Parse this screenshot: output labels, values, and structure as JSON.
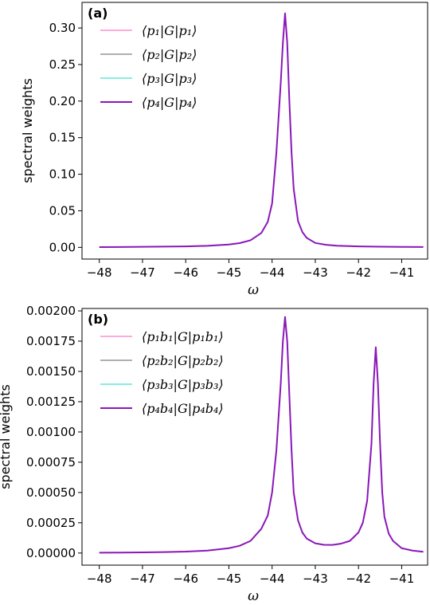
{
  "chart_data": [
    {
      "type": "line",
      "panel_tag": "(a)",
      "xlabel": "ω",
      "ylabel": "spectral weights",
      "xlim": [
        -48.4,
        -40.4
      ],
      "ylim": [
        -0.016,
        0.335
      ],
      "x_ticks": [
        -48,
        -47,
        -46,
        -45,
        -44,
        -43,
        -42,
        -41
      ],
      "x_tick_labels": [
        "−48",
        "−47",
        "−46",
        "−45",
        "−44",
        "−43",
        "−42",
        "−41"
      ],
      "y_ticks": [
        0.0,
        0.05,
        0.1,
        0.15,
        0.2,
        0.25,
        0.3
      ],
      "y_tick_labels": [
        "0.00",
        "0.05",
        "0.10",
        "0.15",
        "0.20",
        "0.25",
        "0.30"
      ],
      "legend_position": "top-left",
      "grid": false,
      "series": [
        {
          "name": "⟨p₁|G|p₁⟩",
          "color": "#ff77c6",
          "width": 1.2
        },
        {
          "name": "⟨p₂|G|p₂⟩",
          "color": "#7f7f7f",
          "width": 1.2
        },
        {
          "name": "⟨p₃|G|p₃⟩",
          "color": "#40e0d0",
          "width": 1.2
        },
        {
          "name": "⟨p₄|G|p₄⟩",
          "color": "#8a17b8",
          "width": 2.0
        }
      ],
      "curve": {
        "x": [
          -48.0,
          -47.5,
          -47.0,
          -46.5,
          -46.0,
          -45.5,
          -45.0,
          -44.75,
          -44.5,
          -44.25,
          -44.1,
          -44.0,
          -43.9,
          -43.8,
          -43.75,
          -43.7,
          -43.65,
          -43.6,
          -43.55,
          -43.5,
          -43.4,
          -43.3,
          -43.2,
          -43.0,
          -42.75,
          -42.5,
          -42.0,
          -41.5,
          -41.0,
          -40.5
        ],
        "y": [
          0.0004,
          0.0005,
          0.0007,
          0.001,
          0.0013,
          0.0021,
          0.0039,
          0.0058,
          0.0097,
          0.0196,
          0.035,
          0.06,
          0.13,
          0.225,
          0.28,
          0.32,
          0.28,
          0.2,
          0.13,
          0.08,
          0.036,
          0.021,
          0.013,
          0.006,
          0.0035,
          0.0022,
          0.0013,
          0.0009,
          0.0006,
          0.0005
        ]
      }
    },
    {
      "type": "line",
      "panel_tag": "(b)",
      "xlabel": "ω",
      "ylabel": "spectral weights",
      "xlim": [
        -48.4,
        -40.4
      ],
      "ylim": [
        -0.0001,
        0.00202
      ],
      "x_ticks": [
        -48,
        -47,
        -46,
        -45,
        -44,
        -43,
        -42,
        -41
      ],
      "x_tick_labels": [
        "−48",
        "−47",
        "−46",
        "−45",
        "−44",
        "−43",
        "−42",
        "−41"
      ],
      "y_ticks": [
        0.0,
        0.00025,
        0.0005,
        0.00075,
        0.001,
        0.00125,
        0.0015,
        0.00175,
        0.002
      ],
      "y_tick_labels": [
        "0.00000",
        "0.00025",
        "0.00050",
        "0.00075",
        "0.00100",
        "0.00125",
        "0.00150",
        "0.00175",
        "0.00200"
      ],
      "legend_position": "top-left",
      "grid": false,
      "series": [
        {
          "name": "⟨p₁b₁|G|p₁b₁⟩",
          "color": "#ff77c6",
          "width": 1.2
        },
        {
          "name": "⟨p₂b₂|G|p₂b₂⟩",
          "color": "#7f7f7f",
          "width": 1.2
        },
        {
          "name": "⟨p₃b₃|G|p₃b₃⟩",
          "color": "#40e0d0",
          "width": 1.2
        },
        {
          "name": "⟨p₄b₄|G|p₄b₄⟩",
          "color": "#8a17b8",
          "width": 2.0
        }
      ],
      "curve": {
        "x": [
          -48.0,
          -47.5,
          -47.0,
          -46.5,
          -46.0,
          -45.5,
          -45.0,
          -44.75,
          -44.5,
          -44.25,
          -44.1,
          -44.0,
          -43.9,
          -43.8,
          -43.75,
          -43.7,
          -43.65,
          -43.6,
          -43.55,
          -43.5,
          -43.4,
          -43.3,
          -43.2,
          -43.0,
          -42.8,
          -42.6,
          -42.4,
          -42.2,
          -42.0,
          -41.9,
          -41.8,
          -41.7,
          -41.65,
          -41.6,
          -41.55,
          -41.5,
          -41.45,
          -41.4,
          -41.3,
          -41.2,
          -41.0,
          -40.75,
          -40.5
        ],
        "y": [
          3e-06,
          4e-06,
          5e-06,
          8e-06,
          1.2e-05,
          2e-05,
          4e-05,
          6e-05,
          0.0001,
          0.0002,
          0.00031,
          0.0005,
          0.00085,
          0.0014,
          0.00175,
          0.00195,
          0.00175,
          0.0013,
          0.00085,
          0.0005,
          0.00027,
          0.00017,
          0.00012,
          8e-05,
          6.8e-05,
          6.7e-05,
          7.8e-05,
          0.0001,
          0.00017,
          0.00025,
          0.00043,
          0.0009,
          0.0014,
          0.0017,
          0.0014,
          0.0009,
          0.0005,
          0.0003,
          0.00016,
          0.0001,
          4e-05,
          2e-05,
          1e-05
        ]
      }
    }
  ]
}
